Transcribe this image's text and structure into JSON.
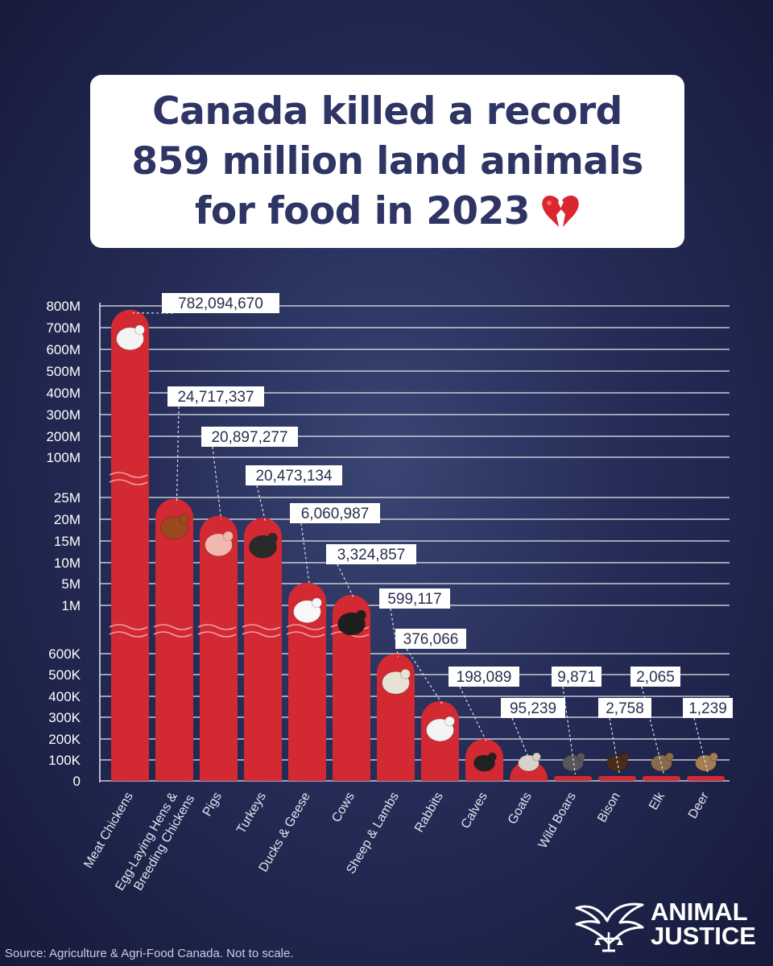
{
  "title": {
    "line1": "Canada killed a record",
    "line2": "859 million land animals",
    "line3": "for food in 2023",
    "emoji_icon": "broken-heart-icon"
  },
  "chart_data": {
    "type": "bar",
    "scale": "broken axis (three segments), not to scale",
    "bar_color": "#d32932",
    "categories": [
      "Meat Chickens",
      "Egg-Laying Hens & Breeding Chickens",
      "Pigs",
      "Turkeys",
      "Ducks & Geese",
      "Cows",
      "Sheep & Lambs",
      "Rabbits",
      "Calves",
      "Goats",
      "Wild Boars",
      "Bison",
      "Elk",
      "Deer"
    ],
    "values": [
      782094670,
      24717337,
      20897277,
      20473134,
      6060987,
      3324857,
      599117,
      376066,
      198089,
      95239,
      9871,
      2758,
      2065,
      1239
    ],
    "value_labels": [
      "782,094,670",
      "24,717,337",
      "20,897,277",
      "20,473,134",
      "6,060,987",
      "3,324,857",
      "599,117",
      "376,066",
      "198,089",
      "95,239",
      "9,871",
      "2,758",
      "2,065",
      "1,239"
    ],
    "category_labels": [
      "Meat Chickens",
      "Egg-Laying Hens &",
      "Pigs",
      "Turkeys",
      "Ducks & Geese",
      "Cows",
      "Sheep & Lambs",
      "Rabbits",
      "Calves",
      "Goats",
      "Wild Boars",
      "Bison",
      "Elk",
      "Deer"
    ],
    "category_labels_2": [
      "",
      "Breeding Chickens",
      "",
      "",
      "",
      "",
      "",
      "",
      "",
      "",
      "",
      "",
      "",
      ""
    ],
    "icons": [
      "white-chicken-icon",
      "brown-hen-icon",
      "pig-icon",
      "turkey-icon",
      "goose-icon",
      "cow-icon",
      "sheep-icon",
      "rabbit-icon",
      "calf-icon",
      "goat-icon",
      "wild-boar-icon",
      "bison-icon",
      "elk-icon",
      "deer-icon"
    ],
    "yticks": [
      "800M",
      "700M",
      "600M",
      "500M",
      "400M",
      "300M",
      "200M",
      "100M",
      "25M",
      "20M",
      "15M",
      "10M",
      "5M",
      "1M",
      "600K",
      "500K",
      "400K",
      "300K",
      "200K",
      "100K",
      "0"
    ],
    "ylim": [
      0,
      800000000
    ],
    "grid": true
  },
  "source": "Source: Agriculture & Agri-Food Canada. Not to scale.",
  "logo": {
    "line1": "ANIMAL",
    "line2": "JUSTICE"
  }
}
